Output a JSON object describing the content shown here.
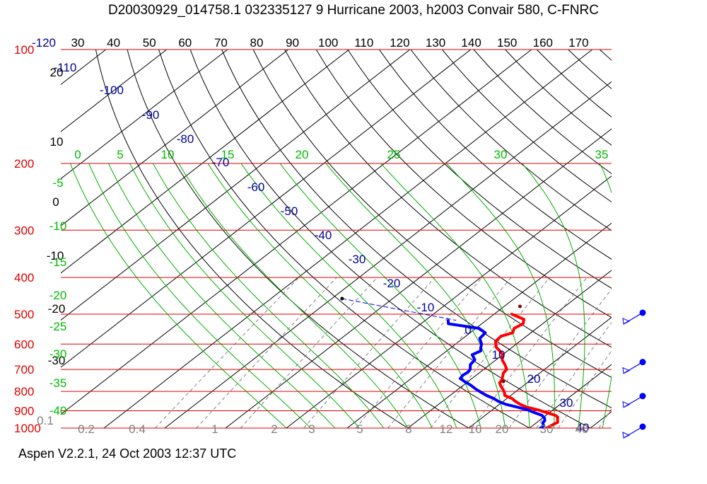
{
  "title": "D20030929_014758.1 032335127 9 Hurricane 2003, h2003 Convair 580, C-FNRC",
  "footer": "Aspen V2.2.1, 24 Oct 2003  12:37 UTC",
  "chart_data": {
    "type": "line",
    "subtype": "skew-T log-p thermodynamic diagram",
    "pressure_levels": [
      100,
      200,
      300,
      400,
      500,
      600,
      700,
      800,
      900,
      1000
    ],
    "pressure_labels": [
      "100",
      "200",
      "300",
      "400",
      "500",
      "600",
      "700",
      "800",
      "900",
      "1000"
    ],
    "isotherm_labels": [
      "-120",
      "-110",
      "-100",
      "-90",
      "-80",
      "-70",
      "-60",
      "-50",
      "-40",
      "-30",
      "-20",
      "-10",
      "0",
      "10",
      "20",
      "30",
      "40"
    ],
    "potential_temperature_labels": [
      "30",
      "40",
      "50",
      "60",
      "70",
      "80",
      "90",
      "100",
      "110",
      "120",
      "130",
      "140",
      "150",
      "160",
      "170"
    ],
    "left_temperature_labels": [
      "20",
      "10",
      "0",
      "-10",
      "-20",
      "-30"
    ],
    "theta_e_labels": [
      "0",
      "5",
      "10",
      "15",
      "20",
      "25",
      "30",
      "35",
      "-5",
      "-10",
      "-15",
      "-20",
      "-25",
      "-30",
      "-35",
      "-40"
    ],
    "mixing_ratio_labels": [
      "0.1",
      "0.2",
      "0.4",
      "1",
      "2",
      "3",
      "5",
      "8",
      "12",
      "16",
      "20",
      "30",
      "40"
    ],
    "series": [
      {
        "kind": "temperature",
        "color": "#ff0000",
        "points": [
          [
            500,
            -7.1
          ],
          [
            516,
            -4.0
          ],
          [
            530,
            -3.2
          ],
          [
            545,
            -3.7
          ],
          [
            560,
            -3.0
          ],
          [
            572,
            -4.2
          ],
          [
            590,
            -4.0
          ],
          [
            612,
            -2.6
          ],
          [
            625,
            -1.3
          ],
          [
            640,
            0.0
          ],
          [
            660,
            1.0
          ],
          [
            680,
            2.5
          ],
          [
            700,
            3.8
          ],
          [
            715,
            4.0
          ],
          [
            730,
            4.6
          ],
          [
            745,
            5.2
          ],
          [
            760,
            5.5
          ],
          [
            775,
            6.4
          ],
          [
            790,
            7.4
          ],
          [
            805,
            8.3
          ],
          [
            820,
            9.0
          ],
          [
            835,
            10.8
          ],
          [
            850,
            12.0
          ],
          [
            865,
            13.4
          ],
          [
            880,
            15.0
          ],
          [
            895,
            17.5
          ],
          [
            910,
            19.5
          ],
          [
            925,
            21.5
          ],
          [
            935,
            22.3
          ],
          [
            950,
            22.8
          ],
          [
            965,
            23.4
          ],
          [
            985,
            23.0
          ],
          [
            1005,
            22.7
          ]
        ]
      },
      {
        "kind": "dewpoint",
        "color": "#0000ff",
        "points": [
          [
            520,
            -16.2
          ],
          [
            530,
            -15.5
          ],
          [
            545,
            -9.5
          ],
          [
            560,
            -7.5
          ],
          [
            580,
            -7.2
          ],
          [
            600,
            -5.7
          ],
          [
            615,
            -5.0
          ],
          [
            625,
            -4.4
          ],
          [
            640,
            -5.0
          ],
          [
            660,
            -3.5
          ],
          [
            680,
            -3.2
          ],
          [
            700,
            -2.2
          ],
          [
            712,
            -2.0
          ],
          [
            725,
            -2.2
          ],
          [
            740,
            -1.9
          ],
          [
            755,
            -0.4
          ],
          [
            770,
            1.2
          ],
          [
            790,
            3.0
          ],
          [
            805,
            4.5
          ],
          [
            820,
            6.0
          ],
          [
            835,
            7.8
          ],
          [
            850,
            9.2
          ],
          [
            865,
            11.0
          ],
          [
            880,
            13.5
          ],
          [
            895,
            15.8
          ],
          [
            910,
            17.5
          ],
          [
            925,
            19.3
          ],
          [
            940,
            20.3
          ],
          [
            955,
            20.9
          ],
          [
            970,
            21.1
          ],
          [
            985,
            21.8
          ],
          [
            1000,
            21.8
          ],
          [
            1010,
            21.8
          ]
        ]
      },
      {
        "kind": "dewpoint-extension",
        "color": "#0000ff",
        "points": [
          [
            455,
            -38.3
          ],
          [
            519,
            -15.0
          ]
        ]
      }
    ],
    "points": [
      {
        "kind": "marker",
        "color": "#8b0000",
        "p": 477,
        "t": -7.4
      },
      {
        "kind": "marker",
        "color": "#8b0000",
        "p": 753,
        "t": 5.8
      },
      {
        "kind": "marker",
        "color": "#000000",
        "p": 455,
        "t": -38.3
      }
    ],
    "wind_barbs": [
      {
        "p": 500
      },
      {
        "p": 675
      },
      {
        "p": 830
      },
      {
        "p": 1000
      }
    ],
    "colors": {
      "pressure_lines": "#e00000",
      "isotherms": "#000000",
      "dry_adiabats": "#000000",
      "moist_adiabats": "#00b000",
      "mixing_ratio_lines": "#808080",
      "isotherm_labels": "#000099",
      "potential_temperature_labels": "#000000",
      "theta_e_labels": "#00bb00",
      "mixing_ratio_text": "#808080"
    }
  }
}
